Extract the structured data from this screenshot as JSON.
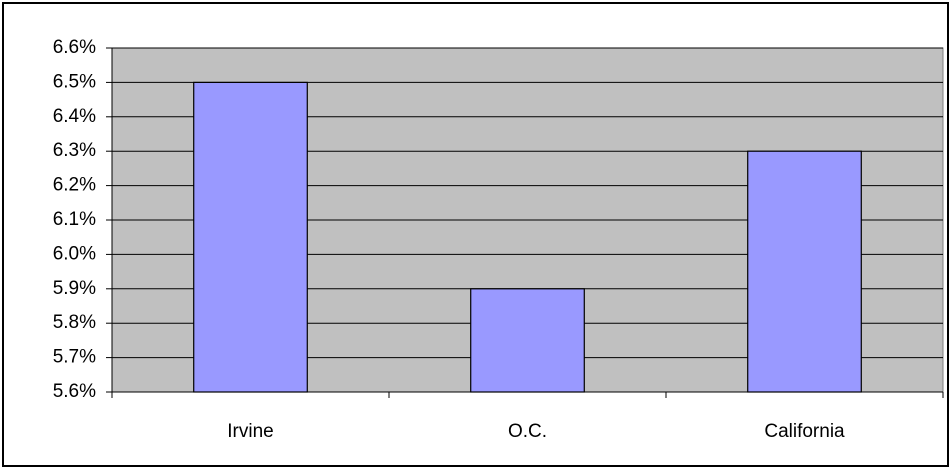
{
  "chart_data": {
    "type": "bar",
    "categories": [
      "Irvine",
      "O.C.",
      "California"
    ],
    "values": [
      6.5,
      5.9,
      6.3
    ],
    "color": "#9999ff",
    "ylim": [
      5.6,
      6.6
    ],
    "yticks": [
      {
        "value": 5.6,
        "label": "5.6%"
      },
      {
        "value": 5.7,
        "label": "5.7%"
      },
      {
        "value": 5.8,
        "label": "5.8%"
      },
      {
        "value": 5.9,
        "label": "5.9%"
      },
      {
        "value": 6.0,
        "label": "6.0%"
      },
      {
        "value": 6.1,
        "label": "6.1%"
      },
      {
        "value": 6.2,
        "label": "6.2%"
      },
      {
        "value": 6.3,
        "label": "6.3%"
      },
      {
        "value": 6.4,
        "label": "6.4%"
      },
      {
        "value": 6.5,
        "label": "6.5%"
      },
      {
        "value": 6.6,
        "label": "6.6%"
      }
    ],
    "grid": true,
    "plot_background": "#c0c0c0"
  }
}
